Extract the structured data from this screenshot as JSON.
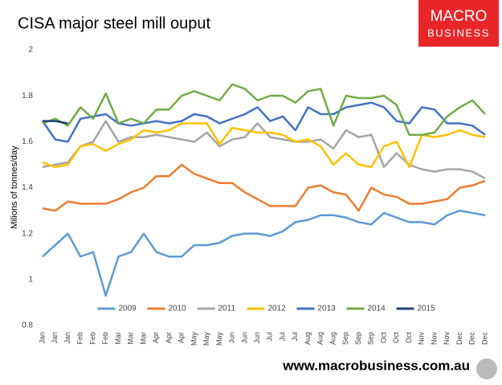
{
  "chart_data": {
    "type": "line",
    "title": "CISA major steel mill ouput",
    "y_label": "Milions of tonnes/day",
    "brand_top": "MACRO",
    "brand_bottom": "BUSINESS",
    "footer": "www.macrobusiness.com.au",
    "categories": [
      "Jan",
      "Jan",
      "Jan",
      "Feb",
      "Feb",
      "Feb",
      "Mar",
      "Mar",
      "Mar",
      "Apr",
      "Apr",
      "Apr",
      "May",
      "May",
      "May",
      "Jun",
      "Jun",
      "Jun",
      "Jul",
      "Jul",
      "Jul",
      "Aug",
      "Aug",
      "Aug",
      "Sep",
      "Sep",
      "Sep",
      "Oct",
      "Oct",
      "Oct",
      "Nov",
      "Nov",
      "Nov",
      "Dec",
      "Dec",
      "Dec"
    ],
    "ylim": [
      0.8,
      2
    ],
    "yticks": [
      0.8,
      1,
      1.2,
      1.4,
      1.6,
      1.8,
      2
    ],
    "grid": false,
    "legend": "bottom",
    "series": [
      {
        "name": "2009",
        "color": "#5b9bd5",
        "values": [
          1.1,
          1.15,
          1.2,
          1.1,
          1.12,
          0.93,
          1.1,
          1.12,
          1.2,
          1.12,
          1.1,
          1.1,
          1.15,
          1.15,
          1.16,
          1.19,
          1.2,
          1.2,
          1.19,
          1.21,
          1.25,
          1.26,
          1.28,
          1.28,
          1.27,
          1.25,
          1.24,
          1.29,
          1.27,
          1.25,
          1.25,
          1.24,
          1.28,
          1.3,
          1.29,
          1.28
        ]
      },
      {
        "name": "2010",
        "color": "#ed7d31",
        "values": [
          1.31,
          1.3,
          1.34,
          1.33,
          1.33,
          1.33,
          1.35,
          1.38,
          1.4,
          1.45,
          1.45,
          1.5,
          1.46,
          1.44,
          1.42,
          1.42,
          1.38,
          1.35,
          1.32,
          1.32,
          1.32,
          1.4,
          1.41,
          1.38,
          1.37,
          1.3,
          1.4,
          1.37,
          1.36,
          1.33,
          1.33,
          1.34,
          1.35,
          1.4,
          1.41,
          1.43
        ]
      },
      {
        "name": "2011",
        "color": "#a5a5a5",
        "values": [
          1.49,
          1.5,
          1.51,
          1.58,
          1.6,
          1.69,
          1.6,
          1.62,
          1.62,
          1.63,
          1.62,
          1.61,
          1.6,
          1.64,
          1.58,
          1.61,
          1.62,
          1.68,
          1.62,
          1.61,
          1.6,
          1.6,
          1.61,
          1.57,
          1.65,
          1.62,
          1.63,
          1.49,
          1.55,
          1.5,
          1.48,
          1.47,
          1.48,
          1.48,
          1.47,
          1.44
        ]
      },
      {
        "name": "2012",
        "color": "#ffc000",
        "values": [
          1.51,
          1.49,
          1.5,
          1.58,
          1.59,
          1.56,
          1.59,
          1.61,
          1.65,
          1.64,
          1.65,
          1.68,
          1.68,
          1.68,
          1.59,
          1.66,
          1.65,
          1.64,
          1.64,
          1.63,
          1.6,
          1.61,
          1.58,
          1.5,
          1.55,
          1.5,
          1.49,
          1.58,
          1.6,
          1.49,
          1.63,
          1.62,
          1.63,
          1.65,
          1.63,
          1.62
        ]
      },
      {
        "name": "2013",
        "color": "#4472c4",
        "values": [
          1.69,
          1.61,
          1.6,
          1.7,
          1.71,
          1.72,
          1.68,
          1.67,
          1.68,
          1.69,
          1.68,
          1.69,
          1.72,
          1.71,
          1.68,
          1.7,
          1.72,
          1.75,
          1.69,
          1.71,
          1.65,
          1.75,
          1.72,
          1.72,
          1.75,
          1.76,
          1.77,
          1.75,
          1.69,
          1.68,
          1.75,
          1.74,
          1.68,
          1.68,
          1.67,
          1.63
        ]
      },
      {
        "name": "2014",
        "color": "#70ad47",
        "values": [
          1.68,
          1.7,
          1.67,
          1.75,
          1.7,
          1.81,
          1.68,
          1.7,
          1.68,
          1.74,
          1.74,
          1.8,
          1.82,
          1.8,
          1.78,
          1.85,
          1.83,
          1.78,
          1.8,
          1.8,
          1.77,
          1.82,
          1.83,
          1.67,
          1.8,
          1.79,
          1.79,
          1.8,
          1.76,
          1.63,
          1.63,
          1.64,
          1.71,
          1.75,
          1.78,
          1.72
        ]
      },
      {
        "name": "2015",
        "color": "#264478",
        "values": [
          1.69,
          1.69,
          1.68,
          null,
          null,
          null,
          null,
          null,
          null,
          null,
          null,
          null,
          null,
          null,
          null,
          null,
          null,
          null,
          null,
          null,
          null,
          null,
          null,
          null,
          null,
          null,
          null,
          null,
          null,
          null,
          null,
          null,
          null,
          null,
          null,
          null
        ]
      }
    ]
  }
}
